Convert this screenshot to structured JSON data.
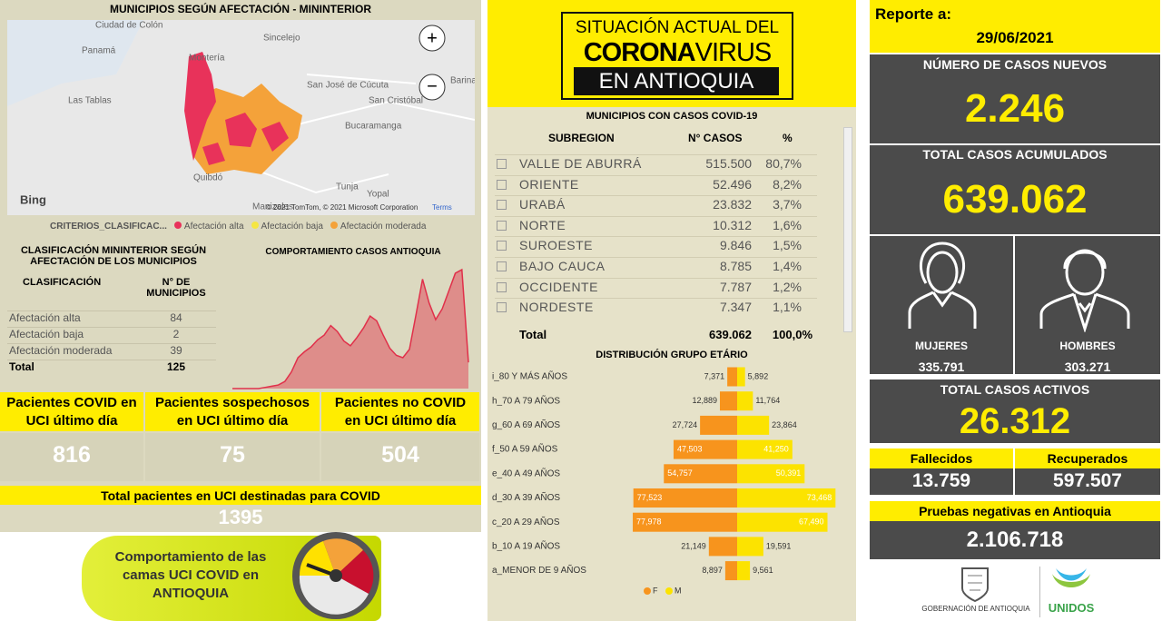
{
  "map": {
    "title": "MUNICIPIOS SEGÚN AFECTACIÓN - MININTERIOR",
    "places": [
      "Ciudad de Colón",
      "Panamá",
      "Las Tablas",
      "Montería",
      "Sincelejo",
      "San José de Cúcuta",
      "San Cristóbal",
      "Bucaramanga",
      "Tunja",
      "Yopal",
      "Manizales",
      "Quibdó",
      "Barinas"
    ],
    "logo": "Bing",
    "attribution": "© 2021 TomTom, © 2021 Microsoft Corporation",
    "terms": "Terms",
    "legend_title": "CRITERIOS_CLASIFICAC...",
    "legend": [
      {
        "name": "Afectación alta",
        "color": "#e8325a"
      },
      {
        "name": "Afectación baja",
        "color": "#f5e642"
      },
      {
        "name": "Afectación moderada",
        "color": "#f4a23a"
      }
    ]
  },
  "classification": {
    "title": "CLASIFICACIÓN MININTERIOR SEGÚN AFECTACIÓN DE LOS MUNICIPIOS",
    "header": [
      "CLASIFICACIÓN",
      "N° DE MUNICIPIOS"
    ],
    "rows": [
      [
        "Afectación alta",
        "84"
      ],
      [
        "Afectación baja",
        "2"
      ],
      [
        "Afectación moderada",
        "39"
      ]
    ],
    "total": [
      "Total",
      "125"
    ]
  },
  "trend": {
    "type": "area",
    "title": "COMPORTAMIENTO CASOS ANTIOQUIA",
    "values": [
      0,
      0,
      0,
      0,
      0,
      1,
      2,
      3,
      6,
      14,
      26,
      31,
      35,
      41,
      45,
      53,
      48,
      40,
      36,
      43,
      51,
      61,
      57,
      45,
      34,
      28,
      26,
      33,
      62,
      92,
      72,
      58,
      67,
      82,
      97,
      100,
      22
    ],
    "ylim": [
      0,
      100
    ],
    "color": "#e0304a"
  },
  "uci": {
    "cards": [
      {
        "label": "Pacientes COVID en UCI último día",
        "value": "816"
      },
      {
        "label": "Pacientes sospechosos en UCI último día",
        "value": "75"
      },
      {
        "label": "Pacientes no COVID en UCI último día",
        "value": "504"
      }
    ],
    "total_label": "Total pacientes en UCI destinadas para COVID",
    "total": "1395"
  },
  "banner": {
    "lines": [
      "Comportamiento de las",
      "camas UCI COVID en",
      "ANTIOQUIA"
    ]
  },
  "header": {
    "lines": [
      "SITUACIÓN ACTUAL DEL",
      "CORONA",
      "VIRUS",
      "EN ANTIOQUIA"
    ]
  },
  "cases_table": {
    "title": "MUNICIPIOS CON CASOS COVID-19",
    "header": [
      "SUBREGION",
      "N° CASOS",
      "%"
    ],
    "rows": [
      [
        "VALLE DE ABURRÁ",
        "515.500",
        "80,7%"
      ],
      [
        "ORIENTE",
        "52.496",
        "8,2%"
      ],
      [
        "URABÁ",
        "23.832",
        "3,7%"
      ],
      [
        "NORTE",
        "10.312",
        "1,6%"
      ],
      [
        "SUROESTE",
        "9.846",
        "1,5%"
      ],
      [
        "BAJO CAUCA",
        "8.785",
        "1,4%"
      ],
      [
        "OCCIDENTE",
        "7.787",
        "1,2%"
      ],
      [
        "NORDESTE",
        "7.347",
        "1,1%"
      ]
    ],
    "total": [
      "Total",
      "639.062",
      "100,0%"
    ]
  },
  "age": {
    "type": "bar",
    "title": "DISTRIBUCIÓN GRUPO ETÁRIO",
    "categories": [
      "i_80 Y MÁS AÑOS",
      "h_70 A 79 AÑOS",
      "g_60 A 69 AÑOS",
      "f_50 A 59 AÑOS",
      "e_40 A 49 AÑOS",
      "d_30 A 39 AÑOS",
      "c_20 A 29 AÑOS",
      "b_10 A 19 AÑOS",
      "a_MENOR DE 9 AÑOS"
    ],
    "series": [
      {
        "name": "F",
        "color": "#f7941d",
        "values": [
          7371,
          12889,
          27724,
          47503,
          54757,
          77523,
          77978,
          21149,
          8897
        ],
        "value_labels": [
          "7,371",
          "12,889",
          "27,724",
          "47,503",
          "54,757",
          "77,523",
          "77,978",
          "21,149",
          "8,897"
        ]
      },
      {
        "name": "M",
        "color": "#fce300",
        "values": [
          5892,
          11764,
          23864,
          41250,
          50391,
          73468,
          67490,
          19591,
          9561
        ],
        "value_labels": [
          "5,892",
          "11,764",
          "23,864",
          "41,250",
          "50,391",
          "73,468",
          "67,490",
          "19,591",
          "9,561"
        ]
      }
    ]
  },
  "report": {
    "label": "Reporte a:",
    "date": "29/06/2021",
    "new_cases_label": "NÚMERO DE CASOS NUEVOS",
    "new_cases": "2.246",
    "total_label": "TOTAL CASOS ACUMULADOS",
    "total": "639.062",
    "women_label": "MUJERES",
    "women": "335.791",
    "men_label": "HOMBRES",
    "men": "303.271",
    "active_label": "TOTAL CASOS ACTIVOS",
    "active": "26.312",
    "deaths_label": "Fallecidos",
    "deaths": "13.759",
    "recovered_label": "Recuperados",
    "recovered": "597.507",
    "negative_label": "Pruebas negativas en Antioquia",
    "negative": "2.106.718",
    "logo_gov": "GOBERNACIÓN DE ANTIOQUIA",
    "logo_unidos": "UNIDOS"
  }
}
